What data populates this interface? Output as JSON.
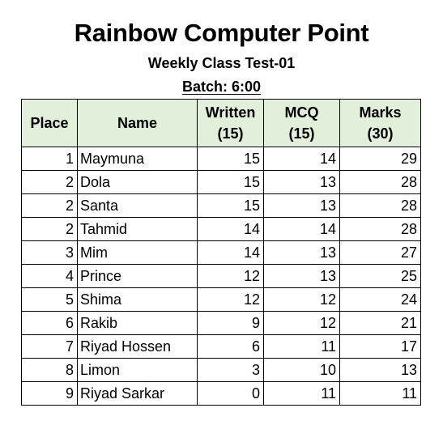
{
  "title": "Rainbow Computer Point",
  "subtitle": "Weekly Class Test-01",
  "batch": "Batch: 6:00",
  "table": {
    "headers": {
      "place": "Place",
      "name": "Name",
      "written": "Written",
      "written_max": "(15)",
      "mcq": "MCQ",
      "mcq_max": "(15)",
      "marks": "Marks",
      "marks_max": "(30)"
    },
    "rows": [
      {
        "place": "1",
        "name": "Maymuna",
        "written": "15",
        "mcq": "14",
        "marks": "29"
      },
      {
        "place": "2",
        "name": "Dola",
        "written": "15",
        "mcq": "13",
        "marks": "28"
      },
      {
        "place": "2",
        "name": "Santa",
        "written": "15",
        "mcq": "13",
        "marks": "28"
      },
      {
        "place": "2",
        "name": "Tahmid",
        "written": "14",
        "mcq": "14",
        "marks": "28"
      },
      {
        "place": "3",
        "name": "Mim",
        "written": "14",
        "mcq": "13",
        "marks": "27"
      },
      {
        "place": "4",
        "name": "Prince",
        "written": "12",
        "mcq": "13",
        "marks": "25"
      },
      {
        "place": "5",
        "name": "Shima",
        "written": "12",
        "mcq": "12",
        "marks": "24"
      },
      {
        "place": "6",
        "name": "Rakib",
        "written": "9",
        "mcq": "12",
        "marks": "21"
      },
      {
        "place": "7",
        "name": "Riyad Hossen",
        "written": "6",
        "mcq": "11",
        "marks": "17"
      },
      {
        "place": "8",
        "name": "Limon",
        "written": "3",
        "mcq": "10",
        "marks": "13"
      },
      {
        "place": "9",
        "name": "Riyad Sarkar",
        "written": "0",
        "mcq": "11",
        "marks": "11"
      }
    ]
  },
  "colors": {
    "header_fill": "#e2efda",
    "grid_line": "#000000"
  }
}
